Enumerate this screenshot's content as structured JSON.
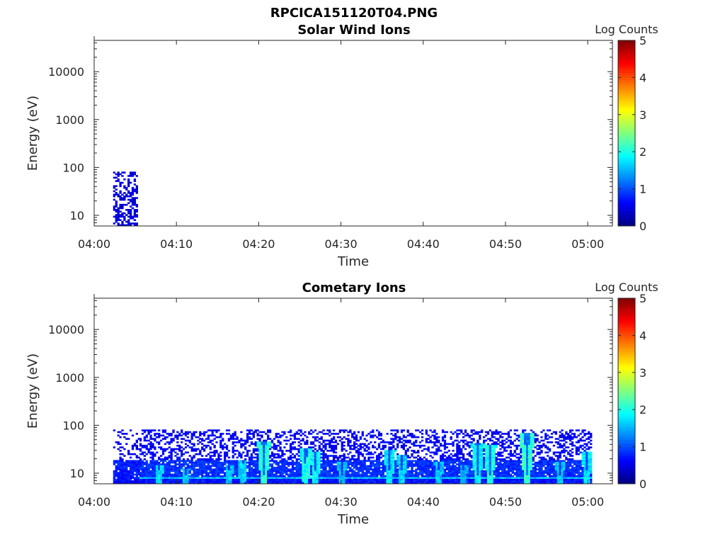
{
  "figure_title": "RPCICA151120T04.PNG",
  "colorbar": {
    "label": "Log Counts",
    "ticks": [
      "0",
      "1",
      "2",
      "3",
      "4",
      "5"
    ],
    "range": [
      0,
      5
    ],
    "colormap": "jet"
  },
  "chart_data": [
    {
      "type": "heatmap",
      "title": "Solar Wind Ions",
      "xlabel": "Time",
      "ylabel": "Energy (eV)",
      "xticks": [
        "04:00",
        "04:10",
        "04:20",
        "04:30",
        "04:40",
        "04:50",
        "05:00"
      ],
      "xlim_minutes": [
        0,
        63
      ],
      "yscale": "log",
      "yticks": [
        "10",
        "100",
        "1000",
        "10000"
      ],
      "ylim": [
        6,
        45000
      ],
      "energy_ceiling": 80,
      "segments": [
        {
          "t0": 2.3,
          "t1": 5.2,
          "floor": 0.5,
          "cyan_floor": 5,
          "peak": 0.7,
          "density": 0.55,
          "noise_depth": 5
        }
      ],
      "bursts": []
    },
    {
      "type": "heatmap",
      "title": "Cometary Ions",
      "xlabel": "Time",
      "ylabel": "Energy (eV)",
      "xticks": [
        "04:00",
        "04:10",
        "04:20",
        "04:30",
        "04:40",
        "04:50",
        "05:00"
      ],
      "xlim_minutes": [
        0,
        63
      ],
      "yscale": "log",
      "yticks": [
        "10",
        "100",
        "1000",
        "10000"
      ],
      "ylim": [
        6,
        45000
      ],
      "energy_ceiling": 80,
      "segments": [
        {
          "t0": 2.3,
          "t1": 5.5,
          "floor": 0.6,
          "cyan_floor": 7,
          "peak": 1.5,
          "density": 0.3,
          "noise_depth": 70
        },
        {
          "t0": 5.5,
          "t1": 60.5,
          "floor": 0.7,
          "cyan_floor": 8,
          "peak": 1.6,
          "density": 0.55,
          "noise_depth": 70
        }
      ],
      "bursts": [
        {
          "t": 7.8,
          "level": 1.7,
          "top": 14
        },
        {
          "t": 11.0,
          "level": 1.6,
          "top": 12
        },
        {
          "t": 16.3,
          "level": 1.6,
          "top": 14
        },
        {
          "t": 17.9,
          "level": 1.7,
          "top": 18
        },
        {
          "t": 20.5,
          "level": 2.1,
          "top": 45
        },
        {
          "t": 25.6,
          "level": 2.0,
          "top": 32
        },
        {
          "t": 26.8,
          "level": 1.9,
          "top": 28
        },
        {
          "t": 30.0,
          "level": 1.6,
          "top": 16
        },
        {
          "t": 35.8,
          "level": 1.8,
          "top": 30
        },
        {
          "t": 37.3,
          "level": 1.7,
          "top": 24
        },
        {
          "t": 41.8,
          "level": 1.6,
          "top": 16
        },
        {
          "t": 44.8,
          "level": 1.5,
          "top": 14
        },
        {
          "t": 46.5,
          "level": 1.9,
          "top": 40
        },
        {
          "t": 48.0,
          "level": 2.0,
          "top": 38
        },
        {
          "t": 52.5,
          "level": 2.2,
          "top": 65
        },
        {
          "t": 56.5,
          "level": 1.6,
          "top": 16
        },
        {
          "t": 59.8,
          "level": 1.8,
          "top": 28
        }
      ]
    }
  ]
}
